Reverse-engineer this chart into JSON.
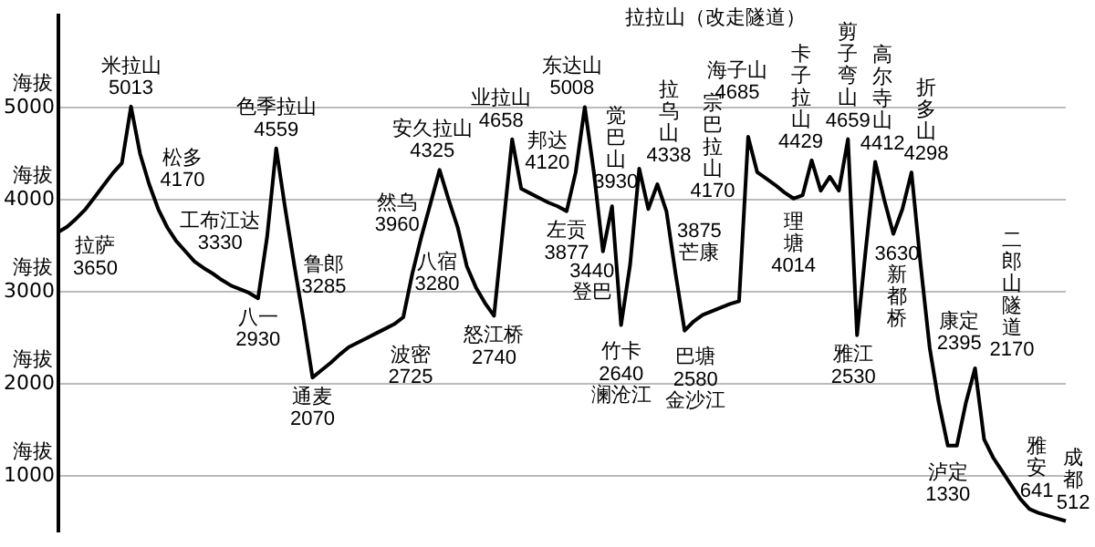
{
  "chart_data": {
    "type": "line",
    "categories": [
      null,
      null,
      null,
      null,
      null,
      null,
      null,
      null,
      null,
      null,
      null,
      null,
      null,
      null,
      null,
      null,
      null,
      null,
      null,
      null,
      null,
      null,
      null,
      null,
      null,
      null,
      null,
      null,
      null,
      null,
      null,
      null,
      null,
      null,
      null,
      null,
      null,
      null,
      null,
      null,
      null,
      null,
      null,
      null,
      null,
      null,
      null,
      null,
      null,
      null,
      null,
      null,
      null,
      null,
      null,
      null,
      null,
      null,
      null,
      null,
      null,
      null,
      null,
      null,
      null,
      null,
      null,
      null,
      null,
      null,
      null,
      null,
      null,
      null,
      null,
      null,
      null,
      null,
      null,
      null,
      null,
      null,
      null,
      null,
      null,
      null,
      null,
      null,
      null,
      null,
      null,
      null,
      null,
      null,
      null,
      null,
      null,
      null,
      null,
      null,
      null,
      null,
      null,
      null,
      null,
      null,
      null,
      null,
      null,
      null,
      null,
      null
    ],
    "series": [
      {
        "color": "#000000",
        "values": [
          3650,
          3710,
          3800,
          3900,
          4030,
          4160,
          4290,
          4400,
          5013,
          4500,
          4170,
          3900,
          3700,
          3550,
          3440,
          3330,
          3260,
          3200,
          3130,
          3070,
          3030,
          2990,
          2930,
          3600,
          4559,
          3900,
          3285,
          2700,
          2070,
          2150,
          2230,
          2320,
          2400,
          2450,
          2500,
          2550,
          2600,
          2650,
          2725,
          3200,
          3600,
          3960,
          4325,
          4000,
          3700,
          3280,
          3050,
          2880,
          2740,
          3700,
          4658,
          4120,
          4070,
          4020,
          3970,
          3930,
          3877,
          4300,
          5008,
          4300,
          3440,
          3930,
          2640,
          3300,
          4338,
          3900,
          4170,
          3875,
          3200,
          2580,
          2680,
          2750,
          2790,
          2830,
          2870,
          2900,
          4685,
          4300,
          4230,
          4160,
          4080,
          4014,
          4050,
          4429,
          4100,
          4250,
          4100,
          4659,
          2530,
          3500,
          4412,
          4000,
          3630,
          3900,
          4298,
          3300,
          2395,
          1800,
          1330,
          1330,
          1800,
          2170,
          1400,
          1200,
          1050,
          900,
          750,
          641,
          600,
          570,
          540,
          512
        ],
        "value_labels": [
          "3650",
          null,
          null,
          null,
          null,
          null,
          null,
          null,
          "5013",
          null,
          "4170",
          null,
          null,
          null,
          null,
          "3330",
          null,
          null,
          null,
          null,
          null,
          null,
          "2930",
          null,
          "4559",
          null,
          "3285",
          null,
          "2070",
          null,
          null,
          null,
          null,
          null,
          null,
          null,
          null,
          null,
          "2725",
          null,
          null,
          "3960",
          "4325",
          null,
          null,
          "3280",
          null,
          null,
          "2740",
          null,
          "4658",
          "4120",
          null,
          null,
          null,
          null,
          "3877",
          null,
          "5008",
          null,
          "3440",
          "3930",
          "2640",
          null,
          "4338",
          null,
          "4170",
          "3875",
          null,
          "2580",
          null,
          null,
          null,
          null,
          null,
          null,
          "4685",
          null,
          null,
          null,
          null,
          "4014",
          null,
          "4429",
          null,
          null,
          null,
          "4659",
          "2530",
          null,
          "4412",
          null,
          "3630",
          null,
          "4298",
          null,
          "2395",
          null,
          "1330",
          null,
          null,
          "2170",
          null,
          null,
          null,
          null,
          null,
          "641",
          null,
          null,
          null,
          "512"
        ]
      }
    ],
    "annotations": [
      "拉萨",
      "米拉山",
      "松多",
      "工布江达",
      "八一",
      "色季拉山",
      "鲁郎",
      "通麦",
      "波密",
      "然乌",
      "安久拉山",
      "八宿",
      "怒江桥",
      "业拉山",
      "邦达",
      "左贡",
      "东达山",
      "登巴",
      "觉巴山",
      "竹卡",
      "澜沧江",
      "拉乌山",
      "宗巴拉山",
      "芒康",
      "巴塘",
      "金沙江",
      "拉拉山（改走隧道）",
      "海子山",
      "理塘",
      "卡子拉山",
      "剪子弯山",
      "雅江",
      "高尔寺山",
      "新都桥",
      "折多山",
      "康定",
      "泸定",
      "二郎山隧道",
      "雅安",
      "成都"
    ],
    "ylim": [
      400,
      6000
    ],
    "ylabel": "海拔",
    "yticks": [
      1000,
      2000,
      3000,
      4000,
      5000
    ],
    "grid": "y",
    "marker": "none",
    "line_style": "solid",
    "legend": false
  }
}
